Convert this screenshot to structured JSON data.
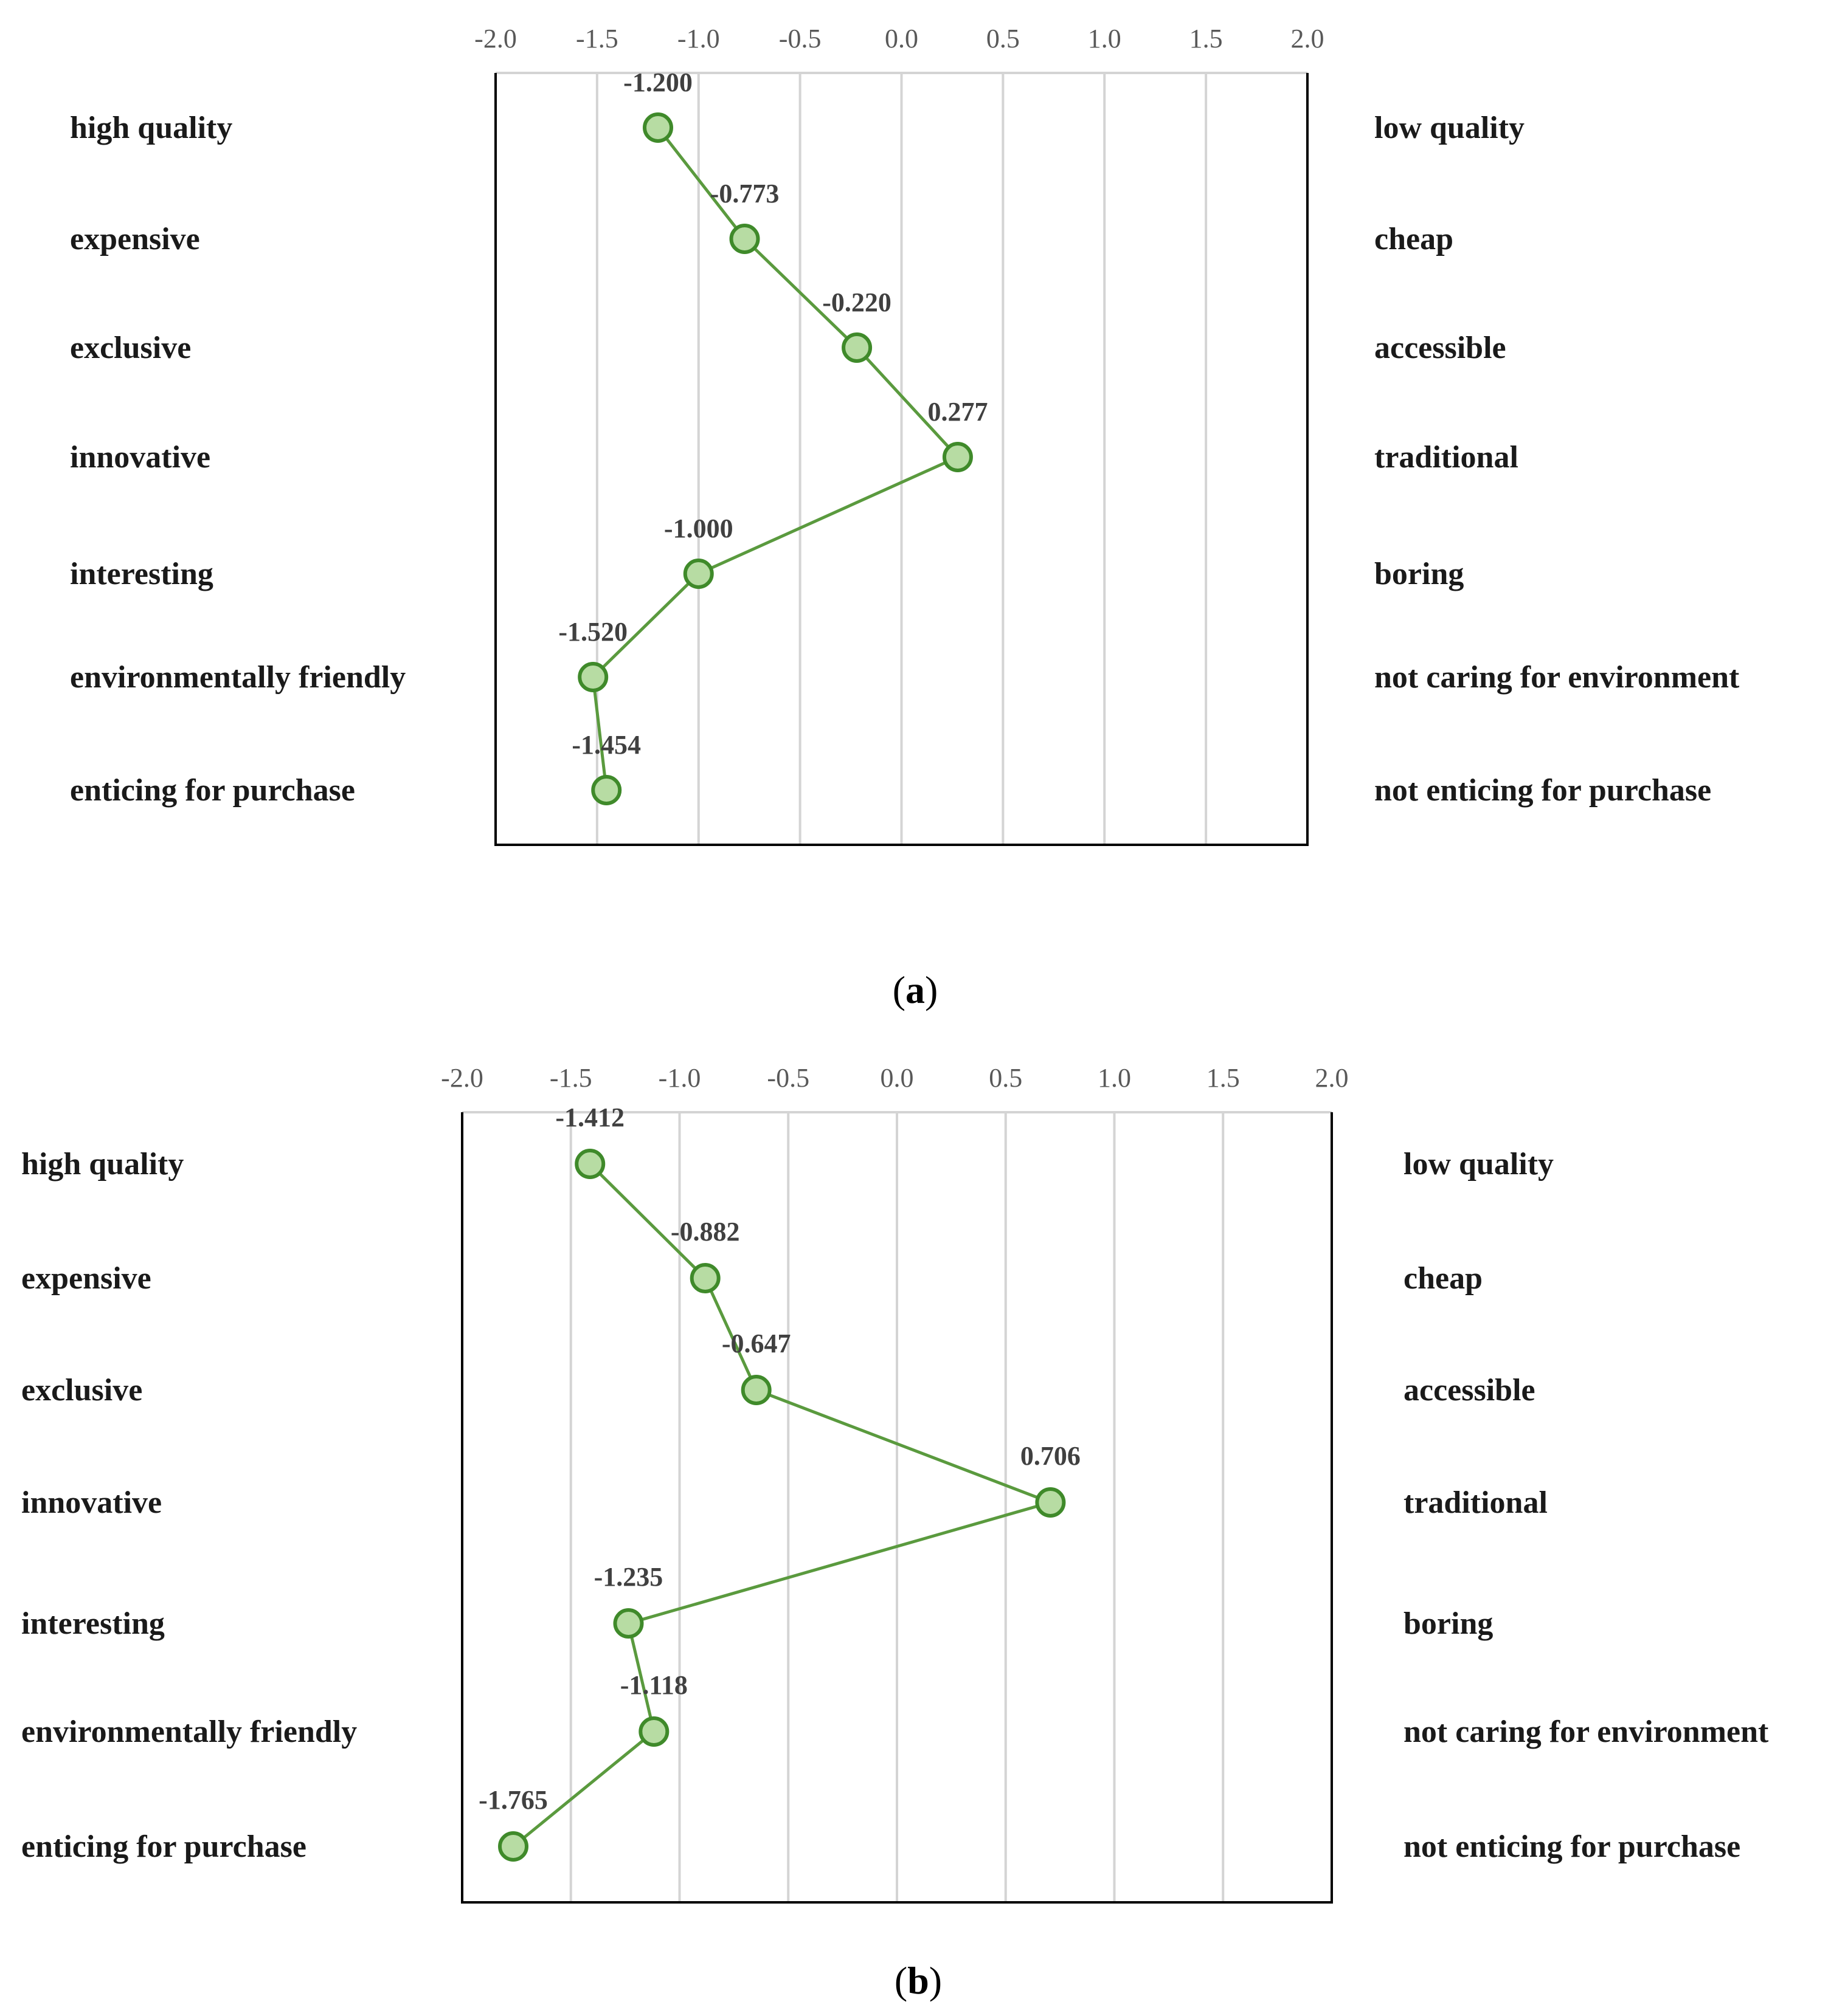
{
  "chart_data": [
    {
      "type": "line",
      "panel": "a",
      "caption": {
        "open": "(",
        "letter": "a",
        "close": ")"
      },
      "xlim": [
        -2.0,
        2.0
      ],
      "ticks": [
        "-2.0",
        "-1.5",
        "-1.0",
        "-0.5",
        "0.0",
        "0.5",
        "1.0",
        "1.5",
        "2.0"
      ],
      "grid": true,
      "left_labels": [
        "high quality",
        "expensive",
        "exclusive",
        "innovative",
        "interesting",
        "environmentally friendly",
        "enticing for purchase"
      ],
      "right_labels": [
        "low quality",
        "cheap",
        "accessible",
        "traditional",
        "boring",
        "not caring for environment",
        "not enticing for purchase"
      ],
      "values": [
        -1.2,
        -0.773,
        -0.22,
        0.277,
        -1.0,
        -1.52,
        -1.454
      ],
      "value_labels": [
        "-1.200",
        "-0.773",
        "-0.220",
        "0.277",
        "-1.000",
        "-1.520",
        "-1.454"
      ],
      "colors": {
        "line": "#5a9a3e",
        "marker_fill": "#b7dca3",
        "marker_stroke": "#3f8a2a",
        "grid": "#d4d4d4",
        "axis": "#000000"
      }
    },
    {
      "type": "line",
      "panel": "b",
      "caption": {
        "open": "(",
        "letter": "b",
        "close": ")"
      },
      "xlim": [
        -2.0,
        2.0
      ],
      "ticks": [
        "-2.0",
        "-1.5",
        "-1.0",
        "-0.5",
        "0.0",
        "0.5",
        "1.0",
        "1.5",
        "2.0"
      ],
      "grid": true,
      "left_labels": [
        "high quality",
        "expensive",
        "exclusive",
        "innovative",
        "interesting",
        "environmentally friendly",
        "enticing for purchase"
      ],
      "right_labels": [
        "low quality",
        "cheap",
        "accessible",
        "traditional",
        "boring",
        "not caring for environment",
        "not enticing for purchase"
      ],
      "values": [
        -1.412,
        -0.882,
        -0.647,
        0.706,
        -1.235,
        -1.118,
        -1.765
      ],
      "value_labels": [
        "-1.412",
        "-0.882",
        "-0.647",
        "0.706",
        "-1.235",
        "-1.118",
        "-1.765"
      ],
      "colors": {
        "line": "#5a9a3e",
        "marker_fill": "#b7dca3",
        "marker_stroke": "#3f8a2a",
        "grid": "#d4d4d4",
        "axis": "#000000"
      }
    }
  ]
}
